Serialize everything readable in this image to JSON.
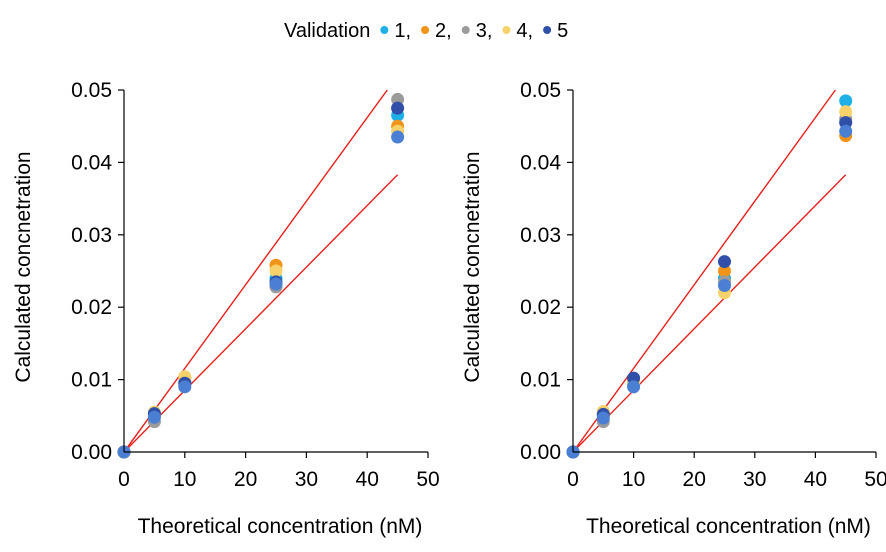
{
  "legend": {
    "title": "Validation",
    "entries": [
      {
        "label": "1,",
        "color": "#1fb0e8"
      },
      {
        "label": "2,",
        "color": "#f29418"
      },
      {
        "label": "3,",
        "color": "#9b9b9b"
      },
      {
        "label": "4,",
        "color": "#f7d16a"
      },
      {
        "label": "5",
        "color": "#2f4fa8"
      }
    ]
  },
  "chart_data": [
    {
      "type": "scatter",
      "title": "",
      "xlabel": "Theoretical concentration (nM)",
      "ylabel": "Calculated concnetration",
      "xlim": [
        0,
        50
      ],
      "ylim": [
        0,
        0.05
      ],
      "xticks": [
        "0",
        "10",
        "20",
        "30",
        "40",
        "50"
      ],
      "yticks": [
        "0.00",
        "0.01",
        "0.02",
        "0.03",
        "0.04",
        "0.05"
      ],
      "grid": false,
      "legend_position": "top-center",
      "reference_lines": [
        {
          "x": [
            0,
            43.3
          ],
          "y": [
            0,
            0.05
          ],
          "color": "#e8201c"
        },
        {
          "x": [
            0,
            45
          ],
          "y": [
            0,
            0.0383
          ],
          "color": "#e8201c"
        }
      ],
      "series": [
        {
          "name": "1",
          "color": "#1fb0e8",
          "points": [
            [
              0,
              0
            ],
            [
              5,
              0.005
            ],
            [
              10,
              0.0097
            ],
            [
              25,
              0.024
            ],
            [
              45,
              0.0465
            ]
          ]
        },
        {
          "name": "2",
          "color": "#f29418",
          "points": [
            [
              0,
              0
            ],
            [
              5,
              0.0052
            ],
            [
              10,
              0.0102
            ],
            [
              25,
              0.0258
            ],
            [
              45,
              0.045
            ]
          ]
        },
        {
          "name": "3",
          "color": "#9b9b9b",
          "points": [
            [
              0,
              0
            ],
            [
              5,
              0.0042
            ],
            [
              10,
              0.0093
            ],
            [
              25,
              0.0228
            ],
            [
              45,
              0.0487
            ]
          ]
        },
        {
          "name": "4",
          "color": "#f7d16a",
          "points": [
            [
              0,
              0
            ],
            [
              5,
              0.0055
            ],
            [
              10,
              0.0104
            ],
            [
              25,
              0.025
            ],
            [
              45,
              0.0443
            ]
          ]
        },
        {
          "name": "5",
          "color": "#2f4fa8",
          "points": [
            [
              0,
              0
            ],
            [
              5,
              0.0053
            ],
            [
              10,
              0.0095
            ],
            [
              25,
              0.0235
            ],
            [
              45,
              0.0475
            ]
          ]
        },
        {
          "name": "",
          "color": "#4a7fd4",
          "points": [
            [
              0,
              0
            ],
            [
              5,
              0.0048
            ],
            [
              10,
              0.009
            ],
            [
              25,
              0.0232
            ],
            [
              45,
              0.0435
            ]
          ]
        }
      ]
    },
    {
      "type": "scatter",
      "title": "",
      "xlabel": "Theoretical concentration (nM)",
      "ylabel": "Calculated concnetration",
      "xlim": [
        0,
        50
      ],
      "ylim": [
        0,
        0.05
      ],
      "xticks": [
        "0",
        "10",
        "20",
        "30",
        "40",
        "50"
      ],
      "yticks": [
        "0.00",
        "0.01",
        "0.02",
        "0.03",
        "0.04",
        "0.05"
      ],
      "grid": false,
      "legend_position": "top-center",
      "reference_lines": [
        {
          "x": [
            0,
            43.3
          ],
          "y": [
            0,
            0.05
          ],
          "color": "#e8201c"
        },
        {
          "x": [
            0,
            45
          ],
          "y": [
            0,
            0.0383
          ],
          "color": "#e8201c"
        }
      ],
      "series": [
        {
          "name": "1",
          "color": "#1fb0e8",
          "points": [
            [
              0,
              0
            ],
            [
              5,
              0.005
            ],
            [
              10,
              0.0095
            ],
            [
              25,
              0.024
            ],
            [
              45,
              0.0485
            ]
          ]
        },
        {
          "name": "2",
          "color": "#f29418",
          "points": [
            [
              0,
              0
            ],
            [
              5,
              0.0053
            ],
            [
              10,
              0.01
            ],
            [
              25,
              0.025
            ],
            [
              45,
              0.0437
            ]
          ]
        },
        {
          "name": "3",
          "color": "#9b9b9b",
          "points": [
            [
              0,
              0
            ],
            [
              5,
              0.0042
            ],
            [
              10,
              0.0092
            ],
            [
              25,
              0.0235
            ],
            [
              45,
              0.046
            ]
          ]
        },
        {
          "name": "4",
          "color": "#f7d16a",
          "points": [
            [
              0,
              0
            ],
            [
              5,
              0.0056
            ],
            [
              10,
              0.0097
            ],
            [
              25,
              0.022
            ],
            [
              45,
              0.047
            ]
          ]
        },
        {
          "name": "5",
          "color": "#2f4fa8",
          "points": [
            [
              0,
              0
            ],
            [
              5,
              0.0052
            ],
            [
              10,
              0.0102
            ],
            [
              25,
              0.0263
            ],
            [
              45,
              0.0455
            ]
          ]
        },
        {
          "name": "",
          "color": "#4a7fd4",
          "points": [
            [
              0,
              0
            ],
            [
              5,
              0.0047
            ],
            [
              10,
              0.009
            ],
            [
              25,
              0.023
            ],
            [
              45,
              0.0443
            ]
          ]
        }
      ]
    }
  ]
}
